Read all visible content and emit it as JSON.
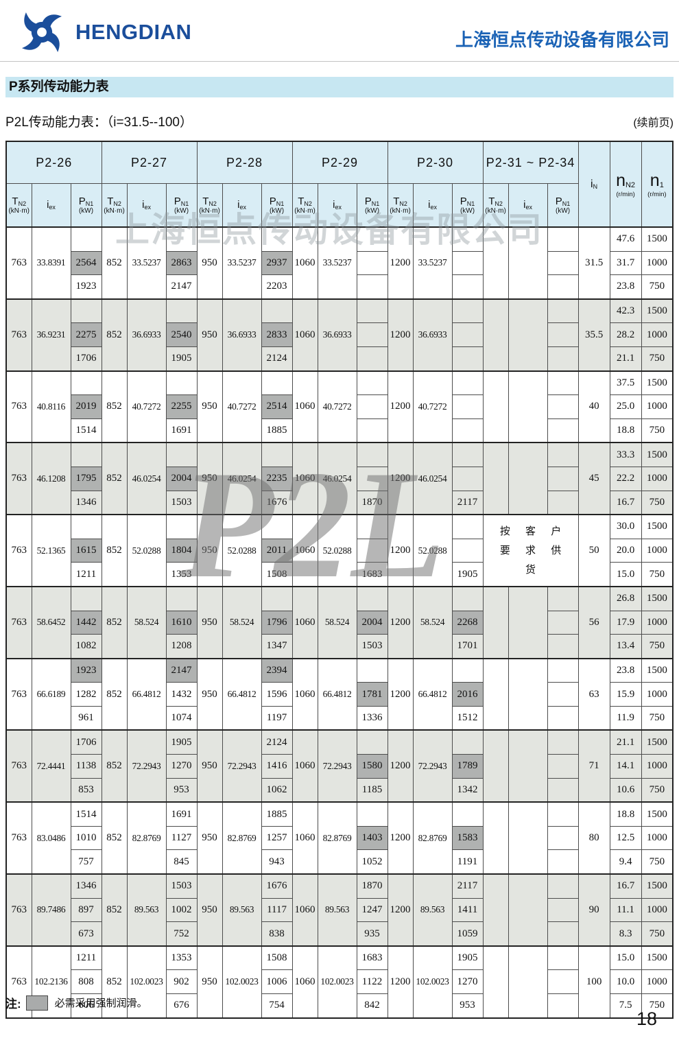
{
  "page": {
    "logo_text": "HENGDIAN",
    "company_name": "上海恒点传动设备有限公司",
    "banner_title": "P系列传动能力表",
    "subtitle": "P2L传动能力表：（i=31.5--100）",
    "continued_note": "(续前页)",
    "watermark_text": "上海恒点传动设备有限公司",
    "watermark_model": "P2L",
    "note_prefix": "注:",
    "note_text": "必需采用强制润滑。",
    "page_number": "18"
  },
  "colors": {
    "brand_blue": "#1b4e9b",
    "company_blue": "#1a62b5",
    "banner_bg": "#c7e7f2",
    "table_header_bg": "#d9edf5",
    "row_alt_bg": "#e3e5e0",
    "forced_lube_gray": "#b0b2b1"
  },
  "table": {
    "groups": [
      "P2-26",
      "P2-27",
      "P2-28",
      "P2-29",
      "P2-30",
      "P2-31 ~ P2-34"
    ],
    "sub_headers": {
      "tn2": {
        "sym": "T",
        "sub": "N2",
        "unit": "(kN·m)"
      },
      "iex": {
        "sym": "i",
        "sub": "ex",
        "unit": ""
      },
      "pn1": {
        "sym": "P",
        "sub": "N1",
        "unit": "(kW)"
      }
    },
    "right_headers": {
      "in": {
        "sym": "i",
        "sub": "N",
        "unit": ""
      },
      "nn2": {
        "sym": "n",
        "sub": "N2",
        "unit": "(r/min)"
      },
      "n1": {
        "sym": "n",
        "sub": "1",
        "unit": "(r/min)"
      }
    },
    "tn2_values": [
      "763",
      "852",
      "950",
      "1060",
      "1200",
      ""
    ],
    "highlight_marker": "*",
    "highlight_meaning": "必需采用强制润滑",
    "rows": [
      {
        "iN": "31.5",
        "iex": [
          "33.8391",
          "33.5237",
          "33.5237",
          "33.5237",
          "33.5237",
          ""
        ],
        "pn1": [
          [
            "",
            "2564*",
            "1923"
          ],
          [
            "",
            "2863*",
            "2147"
          ],
          [
            "",
            "2937*",
            "2203"
          ],
          [
            "",
            "",
            ""
          ],
          [
            "",
            "",
            ""
          ],
          [
            "",
            "",
            ""
          ]
        ],
        "nn2": [
          "47.6",
          "31.7",
          "23.8"
        ],
        "n1": [
          "1500",
          "1000",
          "750"
        ]
      },
      {
        "iN": "35.5",
        "iex": [
          "36.9231",
          "36.6933",
          "36.6933",
          "36.6933",
          "36.6933",
          ""
        ],
        "pn1": [
          [
            "",
            "2275*",
            "1706"
          ],
          [
            "",
            "2540*",
            "1905"
          ],
          [
            "",
            "2833*",
            "2124"
          ],
          [
            "",
            "",
            ""
          ],
          [
            "",
            "",
            ""
          ],
          [
            "",
            "",
            ""
          ]
        ],
        "nn2": [
          "42.3",
          "28.2",
          "21.1"
        ],
        "n1": [
          "1500",
          "1000",
          "750"
        ]
      },
      {
        "iN": "40",
        "iex": [
          "40.8116",
          "40.7272",
          "40.7272",
          "40.7272",
          "40.7272",
          ""
        ],
        "pn1": [
          [
            "",
            "2019*",
            "1514"
          ],
          [
            "",
            "2255*",
            "1691"
          ],
          [
            "",
            "2514*",
            "1885"
          ],
          [
            "",
            "",
            ""
          ],
          [
            "",
            "",
            ""
          ],
          [
            "",
            "",
            ""
          ]
        ],
        "nn2": [
          "37.5",
          "25.0",
          "18.8"
        ],
        "n1": [
          "1500",
          "1000",
          "750"
        ]
      },
      {
        "iN": "45",
        "iex": [
          "46.1208",
          "46.0254",
          "46.0254",
          "46.0254",
          "46.0254",
          ""
        ],
        "pn1": [
          [
            "",
            "1795*",
            "1346"
          ],
          [
            "",
            "2004*",
            "1503"
          ],
          [
            "",
            "2235*",
            "1676"
          ],
          [
            "",
            "",
            "1870"
          ],
          [
            "",
            "",
            "2117"
          ],
          [
            "",
            "",
            ""
          ]
        ],
        "nn2": [
          "33.3",
          "22.2",
          "16.7"
        ],
        "n1": [
          "1500",
          "1000",
          "750"
        ]
      },
      {
        "iN": "50",
        "iex": [
          "52.1365",
          "52.0288",
          "52.0288",
          "52.0288",
          "52.0288",
          ""
        ],
        "pn1": [
          [
            "",
            "1615*",
            "1211"
          ],
          [
            "",
            "1804*",
            "1353"
          ],
          [
            "",
            "2011*",
            "1508"
          ],
          [
            "",
            "",
            "1683"
          ],
          [
            "",
            "",
            "1905"
          ],
          [
            "",
            "",
            ""
          ]
        ],
        "custom": [
          "按 客 户",
          "要 求 供 货"
        ],
        "nn2": [
          "30.0",
          "20.0",
          "15.0"
        ],
        "n1": [
          "1500",
          "1000",
          "750"
        ]
      },
      {
        "iN": "56",
        "iex": [
          "58.6452",
          "58.524",
          "58.524",
          "58.524",
          "58.524",
          ""
        ],
        "pn1": [
          [
            "",
            "1442*",
            "1082"
          ],
          [
            "",
            "1610*",
            "1208"
          ],
          [
            "",
            "1796*",
            "1347"
          ],
          [
            "",
            "2004*",
            "1503"
          ],
          [
            "",
            "2268*",
            "1701"
          ],
          [
            "",
            "",
            ""
          ]
        ],
        "nn2": [
          "26.8",
          "17.9",
          "13.4"
        ],
        "n1": [
          "1500",
          "1000",
          "750"
        ]
      },
      {
        "iN": "63",
        "iex": [
          "66.6189",
          "66.4812",
          "66.4812",
          "66.4812",
          "66.4812",
          ""
        ],
        "pn1": [
          [
            "1923*",
            "1282",
            "961"
          ],
          [
            "2147*",
            "1432",
            "1074"
          ],
          [
            "2394*",
            "1596",
            "1197"
          ],
          [
            "",
            "1781*",
            "1336"
          ],
          [
            "",
            "2016*",
            "1512"
          ],
          [
            "",
            "",
            ""
          ]
        ],
        "nn2": [
          "23.8",
          "15.9",
          "11.9"
        ],
        "n1": [
          "1500",
          "1000",
          "750"
        ]
      },
      {
        "iN": "71",
        "iex": [
          "72.4441",
          "72.2943",
          "72.2943",
          "72.2943",
          "72.2943",
          ""
        ],
        "pn1": [
          [
            "1706",
            "1138",
            "853"
          ],
          [
            "1905",
            "1270",
            "953"
          ],
          [
            "2124",
            "1416",
            "1062"
          ],
          [
            "",
            "1580*",
            "1185"
          ],
          [
            "",
            "1789*",
            "1342"
          ],
          [
            "",
            "",
            ""
          ]
        ],
        "nn2": [
          "21.1",
          "14.1",
          "10.6"
        ],
        "n1": [
          "1500",
          "1000",
          "750"
        ]
      },
      {
        "iN": "80",
        "iex": [
          "83.0486",
          "82.8769",
          "82.8769",
          "82.8769",
          "82.8769",
          ""
        ],
        "pn1": [
          [
            "1514",
            "1010",
            "757"
          ],
          [
            "1691",
            "1127",
            "845"
          ],
          [
            "1885",
            "1257",
            "943"
          ],
          [
            "",
            "1403*",
            "1052"
          ],
          [
            "",
            "1583*",
            "1191"
          ],
          [
            "",
            "",
            ""
          ]
        ],
        "nn2": [
          "18.8",
          "12.5",
          "9.4"
        ],
        "n1": [
          "1500",
          "1000",
          "750"
        ]
      },
      {
        "iN": "90",
        "iex": [
          "89.7486",
          "89.563",
          "89.563",
          "89.563",
          "89.563",
          ""
        ],
        "pn1": [
          [
            "1346",
            "897",
            "673"
          ],
          [
            "1503",
            "1002",
            "752"
          ],
          [
            "1676",
            "1117",
            "838"
          ],
          [
            "1870",
            "1247",
            "935"
          ],
          [
            "2117",
            "1411",
            "1059"
          ],
          [
            "",
            "",
            ""
          ]
        ],
        "nn2": [
          "16.7",
          "11.1",
          "8.3"
        ],
        "n1": [
          "1500",
          "1000",
          "750"
        ]
      },
      {
        "iN": "100",
        "iex": [
          "102.2136",
          "102.0023",
          "102.0023",
          "102.0023",
          "102.0023",
          ""
        ],
        "pn1": [
          [
            "1211",
            "808",
            "606"
          ],
          [
            "1353",
            "902",
            "676"
          ],
          [
            "1508",
            "1006",
            "754"
          ],
          [
            "1683",
            "1122",
            "842"
          ],
          [
            "1905",
            "1270",
            "953"
          ],
          [
            "",
            "",
            ""
          ]
        ],
        "nn2": [
          "15.0",
          "10.0",
          "7.5"
        ],
        "n1": [
          "1500",
          "1000",
          "750"
        ]
      }
    ]
  }
}
